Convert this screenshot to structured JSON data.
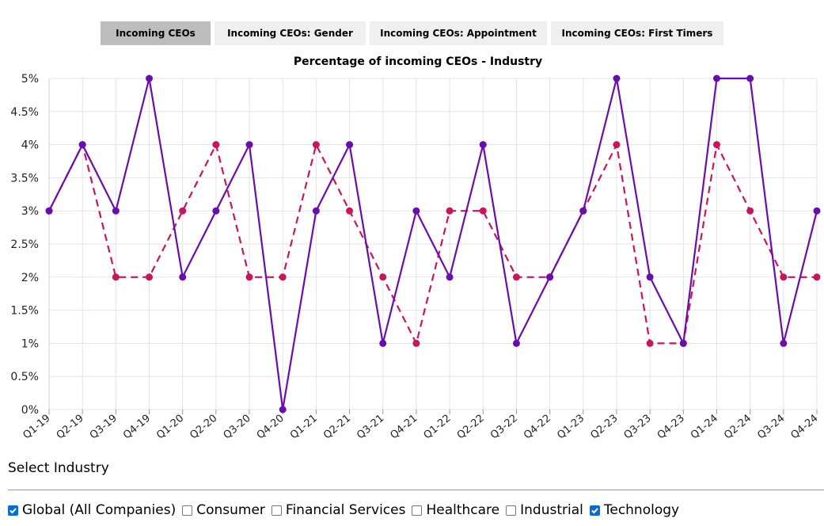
{
  "tabs": [
    {
      "label": "Incoming CEOs",
      "active": true
    },
    {
      "label": "Incoming CEOs: Gender",
      "active": false
    },
    {
      "label": "Incoming CEOs: Appointment",
      "active": false
    },
    {
      "label": "Incoming CEOs: First Timers",
      "active": false
    }
  ],
  "chart_data": {
    "type": "line",
    "title": "Percentage of incoming CEOs - Industry",
    "xlabel": "",
    "ylabel": "",
    "ylim": [
      0,
      5
    ],
    "y_ticks": [
      "0%",
      "0.5%",
      "1%",
      "1.5%",
      "2%",
      "2.5%",
      "3%",
      "3.5%",
      "4%",
      "4.5%",
      "5%"
    ],
    "categories": [
      "Q1-19",
      "Q2-19",
      "Q3-19",
      "Q4-19",
      "Q1-20",
      "Q2-20",
      "Q3-20",
      "Q4-20",
      "Q1-21",
      "Q2-21",
      "Q3-21",
      "Q4-21",
      "Q1-22",
      "Q2-22",
      "Q3-22",
      "Q4-22",
      "Q1-23",
      "Q2-23",
      "Q3-23",
      "Q4-23",
      "Q1-24",
      "Q2-24",
      "Q3-24",
      "Q4-24"
    ],
    "grid": true,
    "series": [
      {
        "name": "Global (All Companies)",
        "color": "#c8155c",
        "dashed": true,
        "values": [
          3,
          4,
          2,
          2,
          3,
          4,
          2,
          2,
          4,
          3,
          2,
          1,
          3,
          3,
          2,
          2,
          3,
          4,
          1,
          1,
          4,
          3,
          2,
          2
        ]
      },
      {
        "name": "Technology",
        "color": "#6a0dad",
        "dashed": false,
        "values": [
          3,
          4,
          3,
          5,
          2,
          3,
          4,
          0,
          3,
          4,
          1,
          3,
          2,
          4,
          1,
          2,
          3,
          5,
          2,
          1,
          5,
          5,
          1,
          3
        ]
      }
    ]
  },
  "filter": {
    "label": "Select Industry",
    "options": [
      {
        "label": "Global (All Companies)",
        "checked": true
      },
      {
        "label": "Consumer",
        "checked": false
      },
      {
        "label": "Financial Services",
        "checked": false
      },
      {
        "label": "Healthcare",
        "checked": false
      },
      {
        "label": "Industrial",
        "checked": false
      },
      {
        "label": "Technology",
        "checked": true
      }
    ]
  }
}
